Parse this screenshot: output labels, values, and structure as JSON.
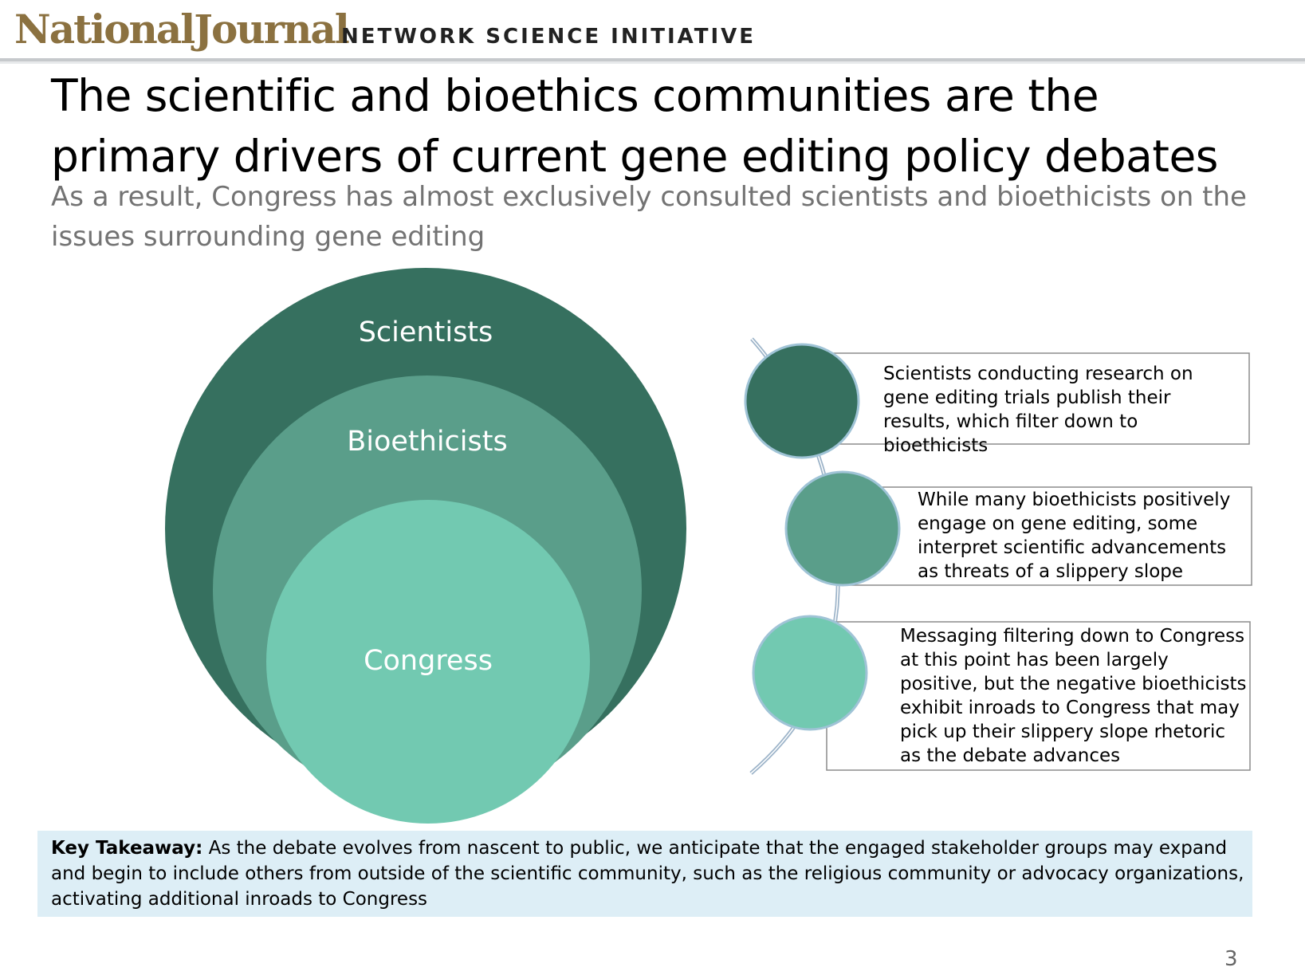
{
  "header": {
    "logo_text": "NationalJournal",
    "initiative": "NETWORK SCIENCE INITIATIVE"
  },
  "title": "The scientific and bioethics communities are the primary drivers of current gene editing policy debates",
  "subtitle": "As a result, Congress has almost exclusively consulted scientists and bioethicists on the issues surrounding gene editing",
  "diagram": {
    "circles": [
      {
        "label": "Scientists",
        "color": "#36705f"
      },
      {
        "label": "Bioethicists",
        "color": "#5a9e8a"
      },
      {
        "label": "Congress",
        "color": "#72c9b1"
      }
    ],
    "items": [
      {
        "text": "Scientists conducting research on gene editing trials publish their results, which filter down to bioethicists",
        "color": "#36705f"
      },
      {
        "text": "While many bioethicists positively engage on gene editing, some interpret scientific advancements as threats of a slippery slope",
        "color": "#5a9e8a"
      },
      {
        "text": "Messaging filtering down to Congress at this point has been largely positive, but the negative bioethicists exhibit inroads to Congress that may pick up their slippery slope rhetoric as the debate advances",
        "color": "#72c9b1"
      }
    ],
    "connector_color": "#9db4c9"
  },
  "takeaway": {
    "label": "Key Takeaway:",
    "text": " As the debate evolves from nascent to public, we anticipate that the engaged stakeholder groups may expand and begin to include others from outside of the scientific community, such as the religious community or advocacy organizations, activating additional inroads to Congress"
  },
  "page_number": "3"
}
